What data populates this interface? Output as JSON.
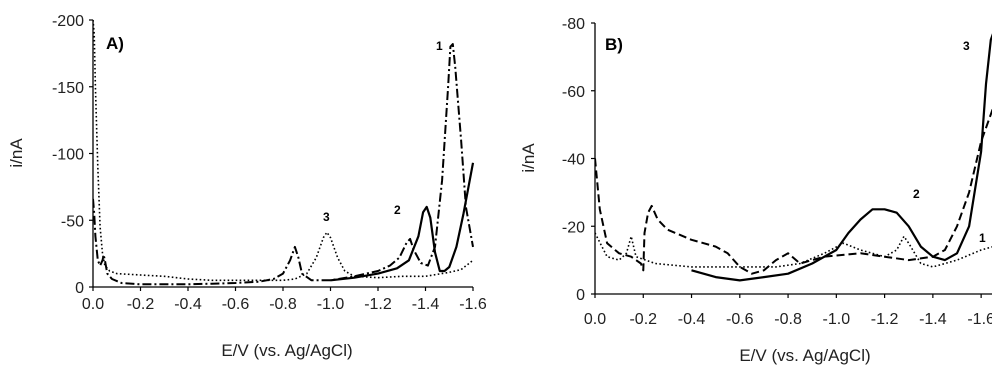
{
  "chart_data": [
    {
      "type": "line",
      "panel_label": "A)",
      "xlabel": "E/V (vs. Ag/AgCl)",
      "ylabel": "i/nA",
      "xlim": [
        0.0,
        -1.6
      ],
      "ylim": [
        0,
        -200
      ],
      "x_ticks": [
        "0.0",
        "-0.2",
        "-0.4",
        "-0.6",
        "-0.8",
        "-1.0",
        "-1.2",
        "-1.4",
        "-1.6"
      ],
      "y_ticks": [
        "0",
        "-50",
        "-100",
        "-150",
        "-200"
      ],
      "grid": false,
      "series": [
        {
          "label": "1",
          "style": "dash-dot",
          "color": "#000000",
          "points": [
            [
              0.0,
              -66
            ],
            [
              -0.005,
              -55
            ],
            [
              -0.01,
              -38
            ],
            [
              -0.02,
              -20
            ],
            [
              -0.03,
              -16
            ],
            [
              -0.04,
              -20
            ],
            [
              -0.045,
              -24
            ],
            [
              -0.05,
              -20
            ],
            [
              -0.06,
              -10
            ],
            [
              -0.08,
              -6
            ],
            [
              -0.12,
              -3
            ],
            [
              -0.2,
              -2
            ],
            [
              -0.3,
              -2
            ],
            [
              -0.4,
              -2
            ],
            [
              -0.5,
              -2.5
            ],
            [
              -0.6,
              -3
            ],
            [
              -0.7,
              -4
            ],
            [
              -0.76,
              -6
            ],
            [
              -0.8,
              -10
            ],
            [
              -0.83,
              -20
            ],
            [
              -0.85,
              -30
            ],
            [
              -0.865,
              -22
            ],
            [
              -0.88,
              -10
            ],
            [
              -0.92,
              -5
            ],
            [
              -1.0,
              -5
            ],
            [
              -1.1,
              -8
            ],
            [
              -1.2,
              -12
            ],
            [
              -1.25,
              -16
            ],
            [
              -1.29,
              -22
            ],
            [
              -1.32,
              -33
            ],
            [
              -1.335,
              -36
            ],
            [
              -1.35,
              -28
            ],
            [
              -1.38,
              -18
            ],
            [
              -1.41,
              -16
            ],
            [
              -1.44,
              -30
            ],
            [
              -1.47,
              -80
            ],
            [
              -1.495,
              -150
            ],
            [
              -1.505,
              -180
            ],
            [
              -1.515,
              -182
            ],
            [
              -1.525,
              -165
            ],
            [
              -1.55,
              -110
            ],
            [
              -1.57,
              -60
            ],
            [
              -1.6,
              -30
            ]
          ]
        },
        {
          "label": "2",
          "style": "solid",
          "color": "#000000",
          "points": [
            [
              -1.0,
              -5
            ],
            [
              -1.1,
              -7
            ],
            [
              -1.2,
              -10
            ],
            [
              -1.28,
              -14
            ],
            [
              -1.33,
              -20
            ],
            [
              -1.37,
              -38
            ],
            [
              -1.39,
              -56
            ],
            [
              -1.405,
              -60
            ],
            [
              -1.42,
              -52
            ],
            [
              -1.44,
              -26
            ],
            [
              -1.46,
              -12
            ],
            [
              -1.48,
              -12
            ],
            [
              -1.5,
              -15
            ],
            [
              -1.53,
              -30
            ],
            [
              -1.56,
              -55
            ],
            [
              -1.6,
              -93
            ]
          ]
        },
        {
          "label": "3",
          "style": "dotted",
          "color": "#000000",
          "points": [
            [
              0.0,
              -200
            ],
            [
              -0.005,
              -190
            ],
            [
              -0.01,
              -150
            ],
            [
              -0.02,
              -90
            ],
            [
              -0.03,
              -45
            ],
            [
              -0.04,
              -25
            ],
            [
              -0.05,
              -16
            ],
            [
              -0.07,
              -12
            ],
            [
              -0.1,
              -10
            ],
            [
              -0.2,
              -9
            ],
            [
              -0.3,
              -8
            ],
            [
              -0.4,
              -6
            ],
            [
              -0.5,
              -5
            ],
            [
              -0.6,
              -5
            ],
            [
              -0.7,
              -5
            ],
            [
              -0.8,
              -5
            ],
            [
              -0.85,
              -6
            ],
            [
              -0.9,
              -10
            ],
            [
              -0.94,
              -22
            ],
            [
              -0.97,
              -37
            ],
            [
              -0.985,
              -41
            ],
            [
              -1.0,
              -37
            ],
            [
              -1.03,
              -22
            ],
            [
              -1.06,
              -12
            ],
            [
              -1.1,
              -8
            ],
            [
              -1.2,
              -7
            ],
            [
              -1.3,
              -8
            ],
            [
              -1.4,
              -8
            ],
            [
              -1.5,
              -11
            ],
            [
              -1.55,
              -13
            ],
            [
              -1.6,
              -20
            ]
          ]
        }
      ]
    },
    {
      "type": "line",
      "panel_label": "B)",
      "xlabel": "E/V (vs. Ag/AgCl)",
      "ylabel": "i/nA",
      "xlim": [
        0.0,
        -1.8
      ],
      "ylim": [
        0,
        -80
      ],
      "x_ticks": [
        "0.0",
        "-0.2",
        "-0.4",
        "-0.6",
        "-0.8",
        "-1.0",
        "-1.2",
        "-1.4",
        "-1.6"
      ],
      "y_ticks": [
        "0",
        "-20",
        "-40",
        "-60",
        "-80"
      ],
      "grid": false,
      "series": [
        {
          "label": "1",
          "style": "dotted",
          "color": "#000000",
          "points": [
            [
              0.0,
              -18
            ],
            [
              -0.05,
              -11
            ],
            [
              -0.1,
              -10
            ],
            [
              -0.13,
              -12
            ],
            [
              -0.15,
              -17
            ],
            [
              -0.17,
              -11
            ],
            [
              -0.25,
              -9
            ],
            [
              -0.4,
              -8
            ],
            [
              -0.6,
              -8
            ],
            [
              -0.75,
              -8
            ],
            [
              -0.85,
              -9
            ],
            [
              -0.95,
              -12
            ],
            [
              -1.03,
              -15
            ],
            [
              -1.1,
              -13
            ],
            [
              -1.2,
              -11
            ],
            [
              -1.25,
              -13
            ],
            [
              -1.28,
              -17
            ],
            [
              -1.3,
              -15
            ],
            [
              -1.35,
              -9
            ],
            [
              -1.4,
              -8
            ],
            [
              -1.5,
              -10
            ],
            [
              -1.6,
              -13
            ],
            [
              -1.65,
              -14
            ],
            [
              -1.7,
              -18
            ],
            [
              -1.74,
              -22
            ]
          ]
        },
        {
          "label": "2",
          "style": "dashed",
          "color": "#000000",
          "points": [
            [
              0.0,
              -40
            ],
            [
              -0.02,
              -25
            ],
            [
              -0.05,
              -15
            ],
            [
              -0.1,
              -12
            ],
            [
              -0.15,
              -11
            ],
            [
              -0.19,
              -9
            ],
            [
              -0.2,
              -7
            ],
            [
              -0.205,
              -18
            ],
            [
              -0.22,
              -24
            ],
            [
              -0.235,
              -26
            ],
            [
              -0.26,
              -22
            ],
            [
              -0.3,
              -19
            ],
            [
              -0.4,
              -16
            ],
            [
              -0.5,
              -14
            ],
            [
              -0.55,
              -12
            ],
            [
              -0.6,
              -8
            ],
            [
              -0.65,
              -6
            ],
            [
              -0.7,
              -7
            ],
            [
              -0.75,
              -10
            ],
            [
              -0.8,
              -12
            ],
            [
              -0.85,
              -9
            ],
            [
              -0.95,
              -11
            ],
            [
              -1.1,
              -12
            ],
            [
              -1.2,
              -11
            ],
            [
              -1.3,
              -10
            ],
            [
              -1.4,
              -11
            ],
            [
              -1.45,
              -13
            ],
            [
              -1.5,
              -20
            ],
            [
              -1.55,
              -30
            ],
            [
              -1.6,
              -45
            ],
            [
              -1.65,
              -55
            ],
            [
              -1.7,
              -62
            ],
            [
              -1.74,
              -64
            ]
          ]
        },
        {
          "label": "3",
          "style": "solid",
          "color": "#000000",
          "points": [
            [
              -0.4,
              -7
            ],
            [
              -0.5,
              -5
            ],
            [
              -0.6,
              -4
            ],
            [
              -0.7,
              -5
            ],
            [
              -0.8,
              -6
            ],
            [
              -0.9,
              -9
            ],
            [
              -1.0,
              -13
            ],
            [
              -1.05,
              -18
            ],
            [
              -1.1,
              -22
            ],
            [
              -1.15,
              -25
            ],
            [
              -1.2,
              -25
            ],
            [
              -1.25,
              -24
            ],
            [
              -1.3,
              -20
            ],
            [
              -1.35,
              -14
            ],
            [
              -1.4,
              -11
            ],
            [
              -1.45,
              -10
            ],
            [
              -1.5,
              -12
            ],
            [
              -1.55,
              -20
            ],
            [
              -1.6,
              -42
            ],
            [
              -1.62,
              -62
            ],
            [
              -1.64,
              -75
            ],
            [
              -1.65,
              -77
            ],
            [
              -1.66,
              -74
            ],
            [
              -1.68,
              -62
            ],
            [
              -1.7,
              -50
            ],
            [
              -1.74,
              -44
            ]
          ]
        }
      ]
    }
  ]
}
